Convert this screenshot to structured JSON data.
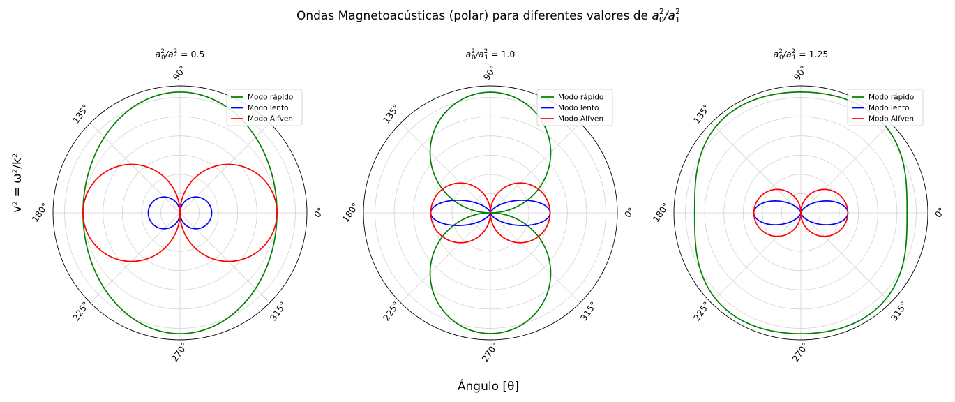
{
  "figure": {
    "suptitle_prefix": "Ondas Magnetoacústicas (polar) para diferentes valores de ",
    "ylabel": "v² = ω²/k²",
    "xlabel": "Ángulo [θ]"
  },
  "colors": {
    "fast": "#008000",
    "slow": "#0000ff",
    "alfven": "#ff0000",
    "grid": "#d3d3d3"
  },
  "chart_data": [
    {
      "type": "polar-line",
      "title_value": "0.5",
      "ratio": 0.5,
      "theta_ticks_deg": [
        0,
        45,
        90,
        135,
        180,
        225,
        270,
        315
      ],
      "theta_tick_labels": [
        "0°",
        "",
        "90°",
        "135°",
        "180°",
        "225°",
        "270°",
        "315°"
      ],
      "radial_grid": true,
      "legend_position": "upper-right",
      "series": [
        {
          "name": "Modo rápido",
          "color": "#008000",
          "peak_radius": 1.0,
          "shape": "fast-wave, wider than tall"
        },
        {
          "name": "Modo lento",
          "color": "#0000ff",
          "peak_radius": 0.25,
          "shape": "two small lobes along 0°/180°"
        },
        {
          "name": "Modo Alfven",
          "color": "#ff0000",
          "peak_radius": 0.75,
          "shape": "two lobes along 0°/180°"
        }
      ]
    },
    {
      "type": "polar-line",
      "title_value": "1.0",
      "ratio": 1.0,
      "theta_ticks_deg": [
        0,
        45,
        90,
        135,
        180,
        225,
        270,
        315
      ],
      "theta_tick_labels": [
        "0°",
        "",
        "90°",
        "135°",
        "180°",
        "225°",
        "270°",
        "315°"
      ],
      "radial_grid": true,
      "legend_position": "upper-right",
      "series": [
        {
          "name": "Modo rápido",
          "color": "#008000",
          "peak_radius": 1.0,
          "shape": "two lobes along 90°/270°"
        },
        {
          "name": "Modo lento",
          "color": "#0000ff",
          "peak_radius": 0.47,
          "shape": "two lobes along 0°/180°"
        },
        {
          "name": "Modo Alfven",
          "color": "#ff0000",
          "peak_radius": 0.47,
          "shape": "two lobes along 0°/180°"
        }
      ]
    },
    {
      "type": "polar-line",
      "title_value": "1.25",
      "ratio": 1.25,
      "theta_ticks_deg": [
        0,
        45,
        90,
        135,
        180,
        225,
        270,
        315
      ],
      "theta_tick_labels": [
        "0°",
        "",
        "90°",
        "135°",
        "180°",
        "225°",
        "270°",
        "315°"
      ],
      "radial_grid": true,
      "legend_position": "upper-right",
      "series": [
        {
          "name": "Modo rápido",
          "color": "#008000",
          "peak_radius": 1.0,
          "shape": "peanut, taller than wide"
        },
        {
          "name": "Modo lento",
          "color": "#0000ff",
          "peak_radius": 0.37,
          "shape": "two lobes along 0°/180°"
        },
        {
          "name": "Modo Alfven",
          "color": "#ff0000",
          "peak_radius": 0.37,
          "shape": "two lobes along 0°/180°"
        }
      ]
    }
  ]
}
